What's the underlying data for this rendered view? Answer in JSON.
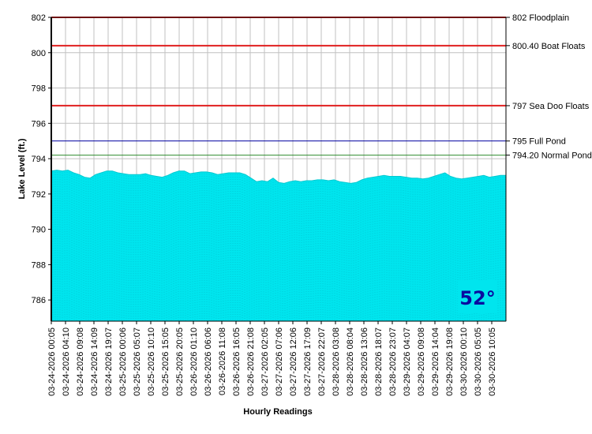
{
  "chart_data": {
    "type": "area",
    "xlabel": "Hourly Readings",
    "ylabel": "Lake Level (ft.)",
    "ylim": [
      784.8,
      802
    ],
    "y_ticks": [
      786,
      788,
      790,
      792,
      794,
      796,
      798,
      800,
      802
    ],
    "grid": true,
    "fill_color": "#00e5ee",
    "x_tick_labels": [
      "03-24-2026 00:05",
      "03-24-2026 04:10",
      "03-24-2026 09:08",
      "03-24-2026 14:09",
      "03-24-2026 19:07",
      "03-25-2026 00:06",
      "03-25-2026 05:07",
      "03-25-2026 10:10",
      "03-25-2026 15:05",
      "03-25-2026 20:05",
      "03-26-2026 01:10",
      "03-26-2026 06:06",
      "03-26-2026 11:08",
      "03-26-2026 16:05",
      "03-26-2026 21:08",
      "03-27-2026 02:05",
      "03-27-2026 07:06",
      "03-27-2026 12:06",
      "03-27-2026 17:09",
      "03-27-2026 22:07",
      "03-28-2026 03:08",
      "03-28-2026 08:04",
      "03-28-2026 13:06",
      "03-28-2026 18:07",
      "03-28-2026 23:07",
      "03-29-2026 04:07",
      "03-29-2026 09:08",
      "03-29-2026 14:04",
      "03-29-2026 19:08",
      "03-30-2026 00:10",
      "03-30-2026 05:05",
      "03-30-2026 10:05"
    ],
    "series": [
      {
        "values": [
          793.3,
          793.35,
          793.3,
          793.35,
          793.2,
          793.1,
          792.95,
          792.9,
          793.1,
          793.2,
          793.3,
          793.3,
          793.2,
          793.15,
          793.1,
          793.1,
          793.1,
          793.15,
          793.05,
          793.0,
          792.95,
          793.05,
          793.2,
          793.3,
          793.3,
          793.15,
          793.2,
          793.25,
          793.25,
          793.2,
          793.1,
          793.15,
          793.2,
          793.2,
          793.2,
          793.1,
          792.9,
          792.7,
          792.75,
          792.7,
          792.9,
          792.65,
          792.6,
          792.7,
          792.75,
          792.7,
          792.75,
          792.75,
          792.8,
          792.8,
          792.75,
          792.8,
          792.7,
          792.65,
          792.6,
          792.65,
          792.8,
          792.9,
          792.95,
          793.0,
          793.05,
          793.0,
          793.0,
          793.0,
          792.95,
          792.9,
          792.9,
          792.85,
          792.9,
          793.0,
          793.1,
          793.2,
          793.0,
          792.9,
          792.85,
          792.9,
          792.95,
          793.0,
          793.05,
          792.95,
          793.0,
          793.05,
          793.05
        ]
      }
    ],
    "reference_lines": [
      {
        "value": 802,
        "label": "802 Floodplain",
        "color": "#e02020"
      },
      {
        "value": 800.4,
        "label": "800.40 Boat Floats",
        "color": "#e02020"
      },
      {
        "value": 797,
        "label": "797 Sea Doo Floats",
        "color": "#e02020"
      },
      {
        "value": 795,
        "label": "795 Full Pond",
        "color": "#0000a0"
      },
      {
        "value": 794.2,
        "label": "794.20 Normal Pond",
        "color": "#2e8b2e"
      }
    ],
    "annotation": "52°"
  }
}
